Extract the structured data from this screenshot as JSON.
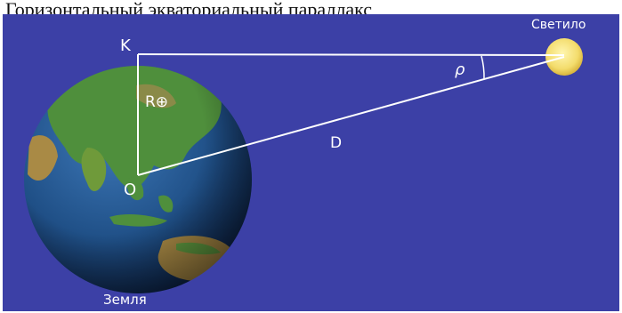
{
  "caption": "Горизонтальный экваториальный параллакс",
  "labels": {
    "observer_point": "K",
    "center_point": "O",
    "earth_radius": "R⊕",
    "distance": "D",
    "parallax_angle": "ρ",
    "luminary": "Светило",
    "earth": "Земля"
  },
  "colors": {
    "background": "#3c40a6",
    "ocean": "#1f4f86",
    "land": "#4f8f3c",
    "lines": "#ffffff",
    "sun": "#f3dc6c"
  }
}
